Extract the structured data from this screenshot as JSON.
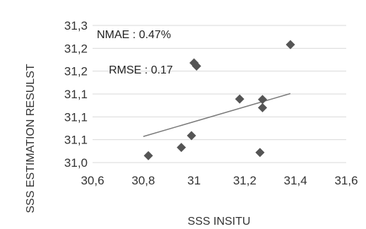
{
  "chart_data": {
    "type": "scatter",
    "xlabel": "SSS INSITU",
    "ylabel": "SSS ESTIMATION RESULST",
    "xlim": [
      30.6,
      31.6
    ],
    "ylim": [
      31.0,
      31.3
    ],
    "x_ticks": [
      "30,6",
      "30,8",
      "31",
      "31,2",
      "31,4",
      "31,6"
    ],
    "y_ticks": [
      "31,0",
      "31,1",
      "31,1",
      "31,1",
      "31,2",
      "31,2",
      "31,3"
    ],
    "grid": true,
    "marker": "diamond",
    "colors": {
      "points": "#555555",
      "trendline": "#7a7a7a",
      "grid": "#d9d9d9"
    },
    "points": [
      {
        "x": 30.82,
        "y": 31.015
      },
      {
        "x": 30.95,
        "y": 31.033
      },
      {
        "x": 30.99,
        "y": 31.059
      },
      {
        "x": 31.0,
        "y": 31.218
      },
      {
        "x": 31.01,
        "y": 31.211
      },
      {
        "x": 31.18,
        "y": 31.139
      },
      {
        "x": 31.26,
        "y": 31.022
      },
      {
        "x": 31.27,
        "y": 31.138
      },
      {
        "x": 31.27,
        "y": 31.12
      },
      {
        "x": 31.38,
        "y": 31.258
      }
    ],
    "trendline": {
      "x": [
        30.8,
        31.38
      ],
      "y": [
        31.057,
        31.151
      ]
    },
    "annotations": [
      {
        "text": "NMAE : 0.47%"
      },
      {
        "text": "RMSE : 0.17"
      }
    ]
  }
}
